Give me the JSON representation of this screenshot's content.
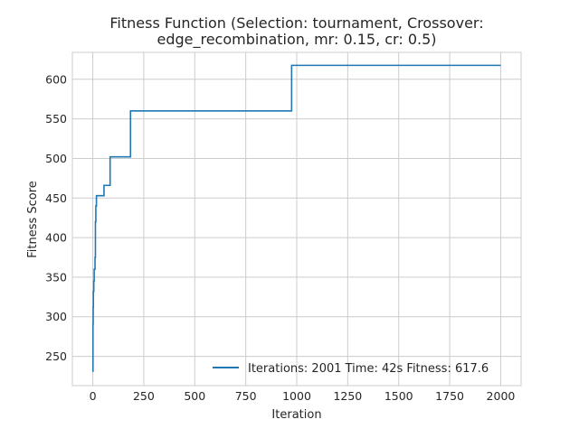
{
  "chart_data": {
    "type": "line",
    "title_lines": [
      "Fitness Function (Selection: tournament, Crossover:",
      "edge_recombination, mr: 0.15, cr: 0.5)"
    ],
    "xlabel": "Iteration",
    "ylabel": "Fitness Score",
    "xlim": [
      -100,
      2100
    ],
    "ylim": [
      213,
      634
    ],
    "x_ticks": [
      0,
      250,
      500,
      750,
      1000,
      1250,
      1500,
      1750,
      2000
    ],
    "y_ticks": [
      250,
      300,
      350,
      400,
      450,
      500,
      550,
      600
    ],
    "grid": true,
    "legend_position": "lower-right",
    "series": [
      {
        "name": "Iterations: 2001 Time: 42s Fitness: 617.6",
        "color": "#1f77b4",
        "step": "post",
        "x": [
          0,
          1,
          2,
          3,
          5,
          7,
          9,
          11,
          13,
          15,
          18,
          22,
          55,
          85,
          185,
          975,
          2000
        ],
        "y": [
          231,
          291,
          312,
          332,
          345,
          360,
          360,
          375,
          420,
          440,
          453,
          453,
          466,
          502,
          560,
          617.6,
          617.6
        ]
      }
    ]
  }
}
